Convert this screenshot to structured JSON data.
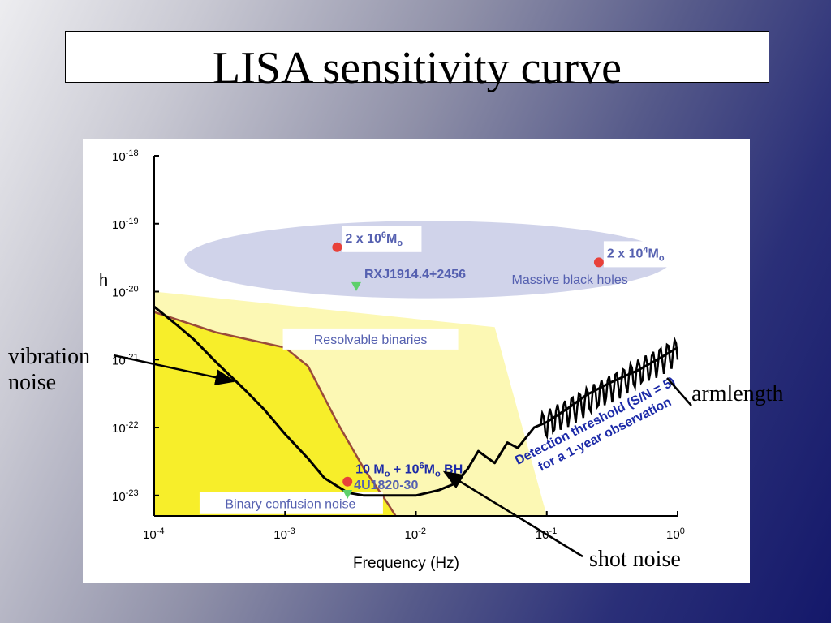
{
  "title": "LISA sensitivity curve",
  "callouts": {
    "vibration_line1": "vibration",
    "vibration_line2": "noise",
    "armlength": "armlength",
    "shot_noise": "shot noise"
  },
  "colors": {
    "massive_bh_region": "#d0d3ea",
    "resolvable_region": "#fcf8b4",
    "confusion_region": "#f7ee2a",
    "confusion_boundary": "#9a4a3a",
    "sensitivity_curve": "#000000",
    "source_marker": "#e8413a",
    "binary_marker": "#5dd06a",
    "label_blue": "#5560b0",
    "threshold_text": "#1c2aa8"
  },
  "chart_data": {
    "type": "line",
    "xscale": "log",
    "yscale": "log",
    "xlabel": "Frequency (Hz)",
    "ylabel": "h",
    "xlim": [
      0.0001,
      1
    ],
    "ylim": [
      5e-24,
      1e-18
    ],
    "x_ticks": [
      {
        "base": "10",
        "exp": "-4"
      },
      {
        "base": "10",
        "exp": "-3"
      },
      {
        "base": "10",
        "exp": "-2"
      },
      {
        "base": "10",
        "exp": "-1"
      },
      {
        "base": "10",
        "exp": "0"
      }
    ],
    "y_ticks": [
      {
        "base": "10",
        "exp": "-18"
      },
      {
        "base": "10",
        "exp": "-19"
      },
      {
        "base": "10",
        "exp": "-20"
      },
      {
        "base": "10",
        "exp": "-21"
      },
      {
        "base": "10",
        "exp": "-22"
      },
      {
        "base": "10",
        "exp": "-23"
      }
    ],
    "regions": {
      "massive_black_holes": {
        "label": "Massive black holes",
        "f_range": [
          0.00017,
          0.9
        ],
        "h_center": 3e-20,
        "h_range": [
          8e-21,
          1.1e-19
        ]
      },
      "resolvable_binaries": {
        "label": "Resolvable binaries",
        "boundary": [
          [
            0.0001,
            1e-20
          ],
          [
            0.04,
            3e-21
          ],
          [
            0.1,
            5e-24
          ],
          [
            0.0001,
            5e-24
          ]
        ]
      },
      "binary_confusion": {
        "label": "Binary confusion noise",
        "boundary": [
          [
            0.0001,
            5e-21
          ],
          [
            0.0003,
            2.5e-21
          ],
          [
            0.001,
            1.5e-21
          ],
          [
            0.0015,
            8e-22
          ],
          [
            0.0025,
            1.2e-22
          ],
          [
            0.004,
            2.5e-23
          ],
          [
            0.006,
            8e-24
          ],
          [
            0.007,
            5e-24
          ],
          [
            0.0001,
            5e-24
          ]
        ]
      }
    },
    "sensitivity_curve": {
      "name": "",
      "x": [
        0.0001,
        0.00015,
        0.0002,
        0.0003,
        0.0005,
        0.0007,
        0.001,
        0.0015,
        0.002,
        0.003,
        0.004,
        0.006,
        0.01,
        0.015,
        0.02,
        0.025,
        0.03,
        0.04,
        0.05,
        0.06,
        0.08,
        0.1,
        0.15,
        0.2,
        0.3,
        0.5,
        0.7,
        1
      ],
      "y": [
        6e-21,
        3.2e-21,
        2e-21,
        9e-22,
        3.5e-22,
        1.8e-22,
        8e-23,
        3.5e-23,
        1.8e-23,
        1.1e-23,
        1e-23,
        1e-23,
        1e-23,
        1.2e-23,
        1.5e-23,
        2.5e-23,
        4.5e-23,
        3e-23,
        6e-23,
        5e-23,
        1e-22,
        1.2e-22,
        2e-22,
        3e-22,
        4.5e-22,
        7e-22,
        1e-21,
        1.5e-21
      ]
    },
    "threshold_label_line1": "Detection threshold (S/N = 5)",
    "threshold_label_line2": "for a 1-year observation",
    "sources": [
      {
        "kind": "massive_bh",
        "label": "2 x 10",
        "label_exp": "6",
        "label_unit": "M",
        "label_sub": "o",
        "f": 0.0025,
        "h": 4.5e-20
      },
      {
        "kind": "massive_bh",
        "label": "2 x 10",
        "label_exp": "4",
        "label_unit": "M",
        "label_sub": "o",
        "f": 0.25,
        "h": 2.7e-20
      },
      {
        "kind": "black_hole_pair",
        "label": "10 M",
        "label_sub": "o",
        "label_mid": " + 10",
        "label_exp": "6",
        "label_unit": "M",
        "label_sub2": "o",
        "label_tail": " BH",
        "f": 0.003,
        "h": 1.6e-23
      },
      {
        "kind": "binary",
        "label": "RXJ1914.4+2456",
        "f": 0.0035,
        "h": 1.2e-20
      },
      {
        "kind": "binary",
        "label": "4U1820-30",
        "f": 0.003,
        "h": 1.05e-23
      }
    ]
  }
}
